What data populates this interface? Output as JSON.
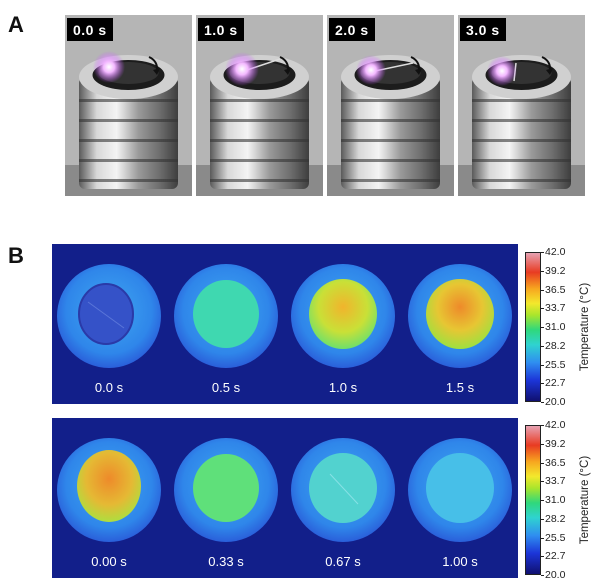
{
  "panel_a": {
    "letter": "A",
    "frames": [
      {
        "time": "0.0 s"
      },
      {
        "time": "1.0 s"
      },
      {
        "time": "2.0 s"
      },
      {
        "time": "3.0 s"
      }
    ]
  },
  "panel_b": {
    "letter": "B",
    "heating": {
      "times": [
        "0.0 s",
        "0.5 s",
        "1.0 s",
        "1.5 s"
      ],
      "surface_colors": [
        "#3552c8",
        "#3fd8b0",
        "#b9e13a",
        "#e9b82f"
      ]
    },
    "cooling": {
      "times": [
        "0.00 s",
        "0.33 s",
        "0.67 s",
        "1.00 s"
      ],
      "surface_colors": [
        "#e8a32f",
        "#5fe07a",
        "#52d2cf",
        "#47bfe8"
      ]
    },
    "colorbar": {
      "axis_label": "Temperature (°C)",
      "ticks": [
        "42.0",
        "39.2",
        "36.5",
        "33.7",
        "31.0",
        "28.2",
        "25.5",
        "22.7",
        "20.0"
      ]
    }
  }
}
